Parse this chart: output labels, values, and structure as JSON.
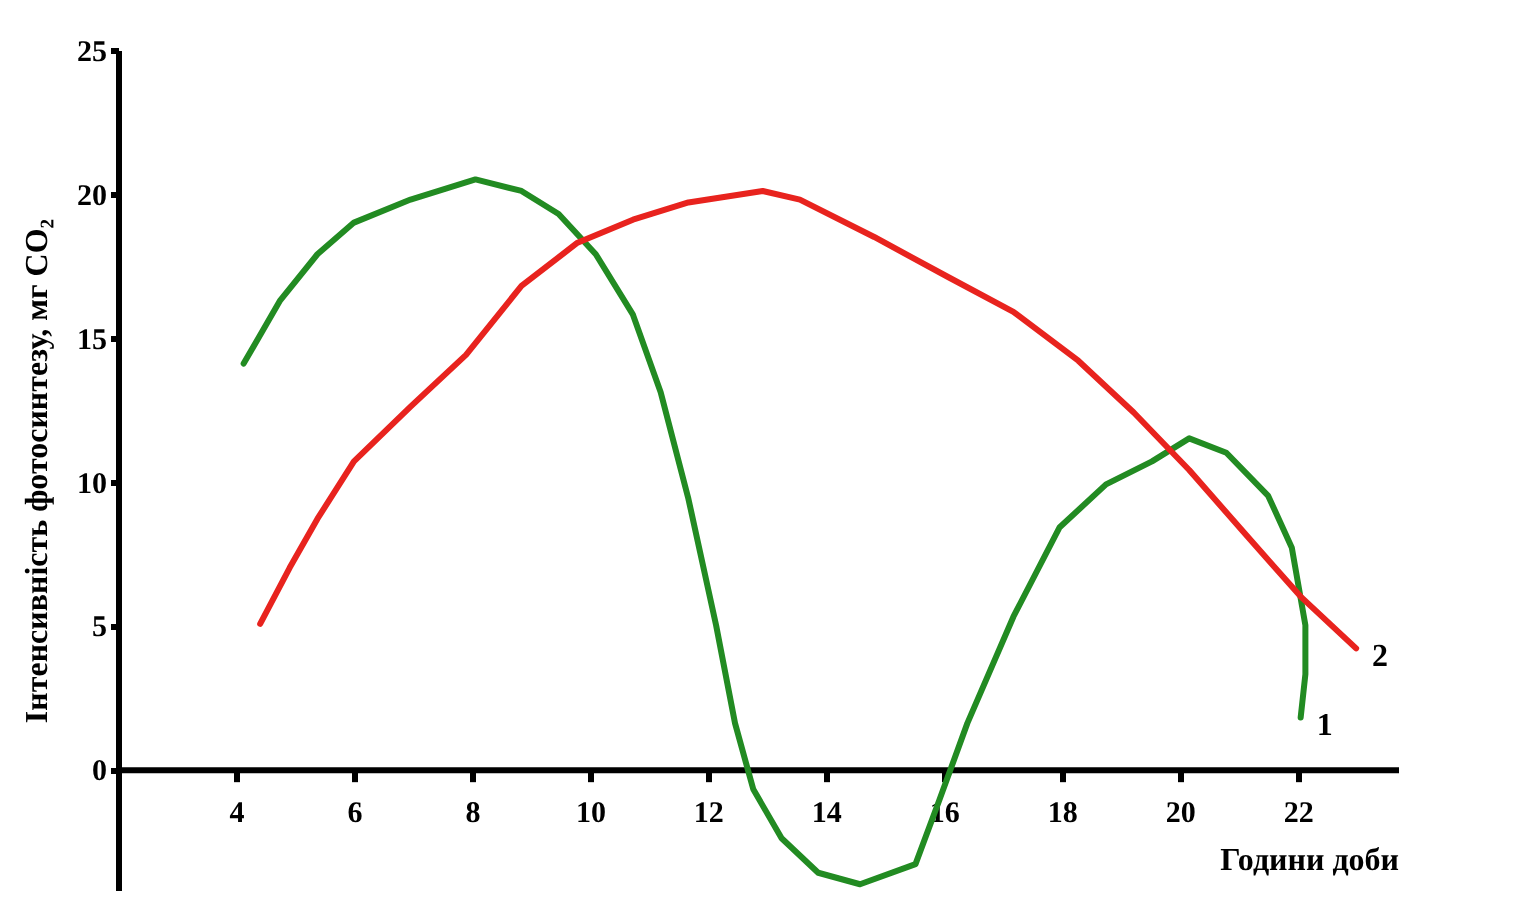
{
  "chart_data": {
    "type": "line",
    "xlabel": "Години доби",
    "ylabel": "Інтенсивність фотосинтезу, мг CO₂",
    "xlim": [
      2,
      23.7
    ],
    "ylim": [
      -4.2,
      25
    ],
    "xticks": [
      4,
      6,
      8,
      10,
      12,
      14,
      16,
      18,
      20,
      22
    ],
    "yticks": [
      0,
      5,
      10,
      15,
      20,
      25
    ],
    "grid": false,
    "legend": false,
    "marker": "none",
    "line_style": "solid",
    "series": [
      {
        "name": "1",
        "color": "#228b22",
        "x": [
          4.13,
          4.75,
          5.38,
          6.0,
          6.96,
          8.06,
          8.84,
          9.47,
          10.1,
          10.73,
          11.2,
          11.67,
          12.14,
          12.46,
          12.77,
          13.25,
          13.87,
          14.58,
          15.52,
          15.92,
          16.4,
          17.18,
          17.96,
          18.75,
          19.53,
          20.16,
          20.79,
          21.5,
          21.9,
          22.13,
          22.13,
          22.05
        ],
        "values": [
          14.1,
          16.3,
          17.9,
          19.0,
          19.8,
          20.5,
          20.1,
          19.3,
          17.9,
          15.8,
          13.1,
          9.4,
          5.0,
          1.6,
          -0.7,
          -2.4,
          -3.6,
          -4.0,
          -3.3,
          -1.1,
          1.6,
          5.3,
          8.4,
          9.9,
          10.7,
          11.5,
          11.0,
          9.5,
          7.7,
          5.0,
          3.3,
          1.8
        ]
      },
      {
        "name": "2",
        "color": "#e8231e",
        "x": [
          4.41,
          4.91,
          5.38,
          6.0,
          6.96,
          7.9,
          8.84,
          9.79,
          10.73,
          11.67,
          12.93,
          13.56,
          14.82,
          16.08,
          17.18,
          18.28,
          19.22,
          20.16,
          21.1,
          22.05,
          22.99
        ],
        "values": [
          5.05,
          7.0,
          8.7,
          10.7,
          12.6,
          14.4,
          16.8,
          18.3,
          19.1,
          19.7,
          20.1,
          19.8,
          18.5,
          17.1,
          15.9,
          14.2,
          12.4,
          10.4,
          8.2,
          6.0,
          4.2
        ]
      }
    ]
  }
}
